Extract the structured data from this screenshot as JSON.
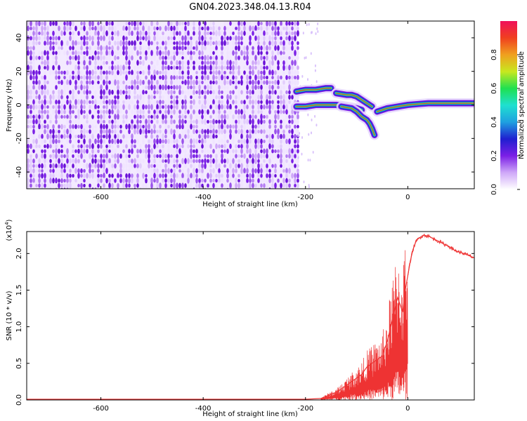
{
  "title": "GN04.2023.348.04.13.R04",
  "chart_data": [
    {
      "type": "heatmap",
      "xlabel": "Height of straight line (km)",
      "ylabel": "Frequency (Hz)",
      "xlim": [
        -745,
        130
      ],
      "ylim": [
        -50,
        50
      ],
      "xticks": [
        -600,
        -400,
        -200,
        0
      ],
      "xtick_labels": [
        "-600",
        "-400",
        "-200",
        "0"
      ],
      "yticks": [
        -40,
        -20,
        0,
        20,
        40
      ],
      "ytick_labels": [
        "-40",
        "-20",
        "0",
        "20",
        "40"
      ],
      "noise_region_x": [
        -745,
        -215
      ],
      "signal_tracks": [
        {
          "x": [
            -218,
            -200,
            -180,
            -160,
            -150
          ],
          "y": [
            8,
            9,
            9,
            10,
            10
          ]
        },
        {
          "x": [
            -218,
            -200,
            -180,
            -160,
            -140,
            -120,
            -100,
            -90
          ],
          "y": [
            -1,
            -1,
            0,
            0,
            0,
            -1,
            -2,
            -3
          ]
        },
        {
          "x": [
            -140,
            -120,
            -110,
            -100,
            -90,
            -80,
            -70
          ],
          "y": [
            7,
            6,
            6,
            5,
            3,
            1,
            -1
          ]
        },
        {
          "x": [
            -130,
            -110,
            -100,
            -90,
            -80,
            -75,
            -70,
            -65
          ],
          "y": [
            -1,
            -2,
            -4,
            -7,
            -9,
            -11,
            -14,
            -18
          ]
        },
        {
          "x": [
            -60,
            -50,
            -40,
            -20,
            0,
            20,
            40,
            60,
            80,
            100,
            130
          ],
          "y": [
            -4,
            -3,
            -2,
            -1,
            0,
            0.5,
            1,
            1,
            1,
            1,
            1
          ]
        }
      ],
      "grid": false
    },
    {
      "type": "line",
      "xlabel": "Height of straight line (km)",
      "ylabel": "SNR (10 * v/v)",
      "multiplier_label": "(x10",
      "multiplier_exp": "4",
      "xlim": [
        -745,
        130
      ],
      "ylim": [
        0,
        2.3
      ],
      "xticks": [
        -600,
        -400,
        -200,
        0
      ],
      "xtick_labels": [
        "-600",
        "-400",
        "-200",
        "0"
      ],
      "yticks": [
        0,
        0.5,
        1.0,
        1.5,
        2.0
      ],
      "ytick_labels": [
        "0.0",
        "0.5",
        "1.0",
        "1.5",
        "2.0"
      ],
      "series": [
        {
          "color": "#ee3333",
          "x": [
            -745,
            -400,
            -200,
            -170,
            -160,
            -150,
            -140,
            -130,
            -120,
            -110,
            -100,
            -90,
            -80,
            -70,
            -60,
            -50,
            -40,
            -30,
            -20,
            -10,
            -5,
            0,
            5,
            10,
            15,
            20,
            30,
            40,
            50,
            60,
            70,
            80,
            90,
            100,
            110,
            120,
            130
          ],
          "y": [
            0.01,
            0.01,
            0.01,
            0.02,
            0.05,
            0.08,
            0.1,
            0.15,
            0.2,
            0.25,
            0.3,
            0.35,
            0.45,
            0.5,
            0.55,
            0.6,
            0.8,
            1.1,
            1.4,
            1.2,
            1.5,
            1.7,
            1.9,
            2.05,
            2.15,
            2.2,
            2.25,
            2.24,
            2.2,
            2.17,
            2.13,
            2.1,
            2.05,
            2.02,
            2.0,
            1.97,
            1.94
          ]
        }
      ],
      "grid": false
    }
  ],
  "colorbar": {
    "label": "Normalized spectral amplitude",
    "ticks": [
      0.0,
      0.2,
      0.4,
      0.6,
      0.8
    ],
    "tick_labels": [
      "0.0",
      "0.2",
      "0.4",
      "0.6",
      "0.8"
    ],
    "range": [
      0,
      1
    ],
    "colors": [
      "#ffffff",
      "#cfa8f8",
      "#7b1fe6",
      "#1f1fd0",
      "#1fa0e0",
      "#1fe0d0",
      "#1fe050",
      "#c8e81f",
      "#f0a01f",
      "#f0401f",
      "#f0105a"
    ]
  }
}
